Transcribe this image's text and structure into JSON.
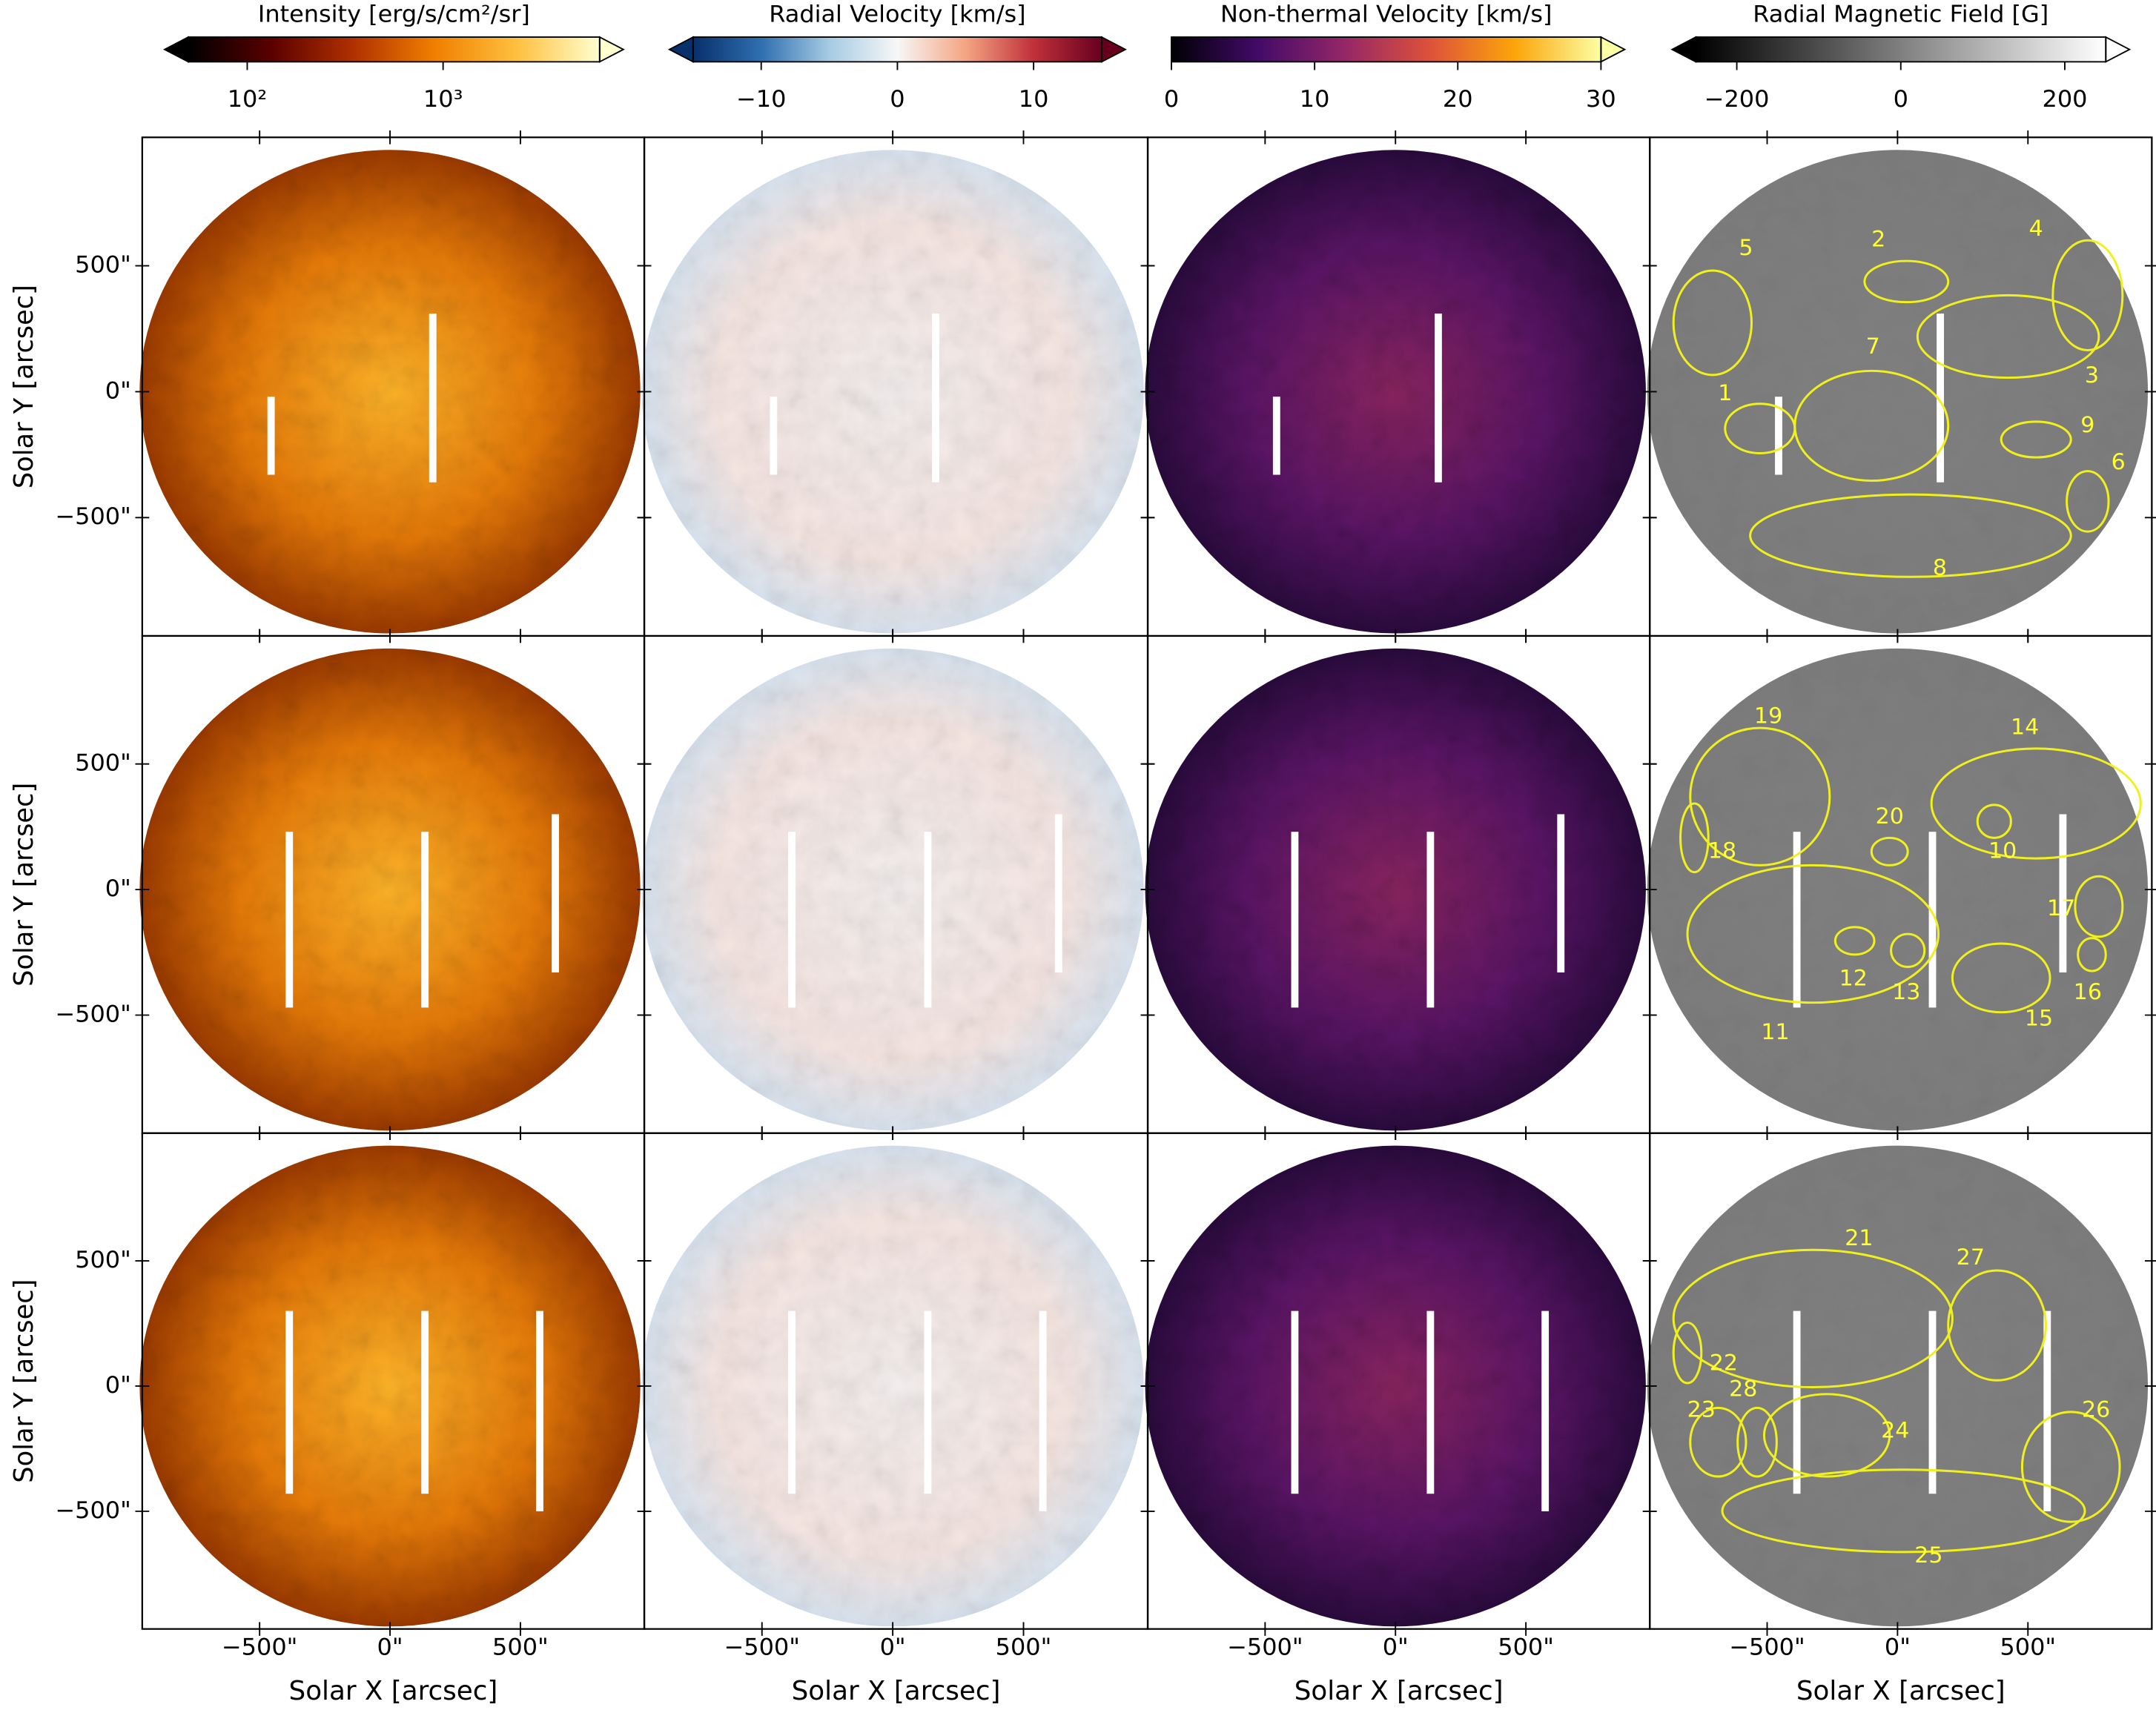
{
  "chart_data": {
    "type": "image-grid",
    "xlabel": "Solar X [arcsec]",
    "ylabel": "Solar Y [arcsec]",
    "xlim": [
      -950,
      975
    ],
    "ylim": [
      -970,
      1010
    ],
    "xticks": [
      {
        "value": -500,
        "label": "−500\""
      },
      {
        "value": 0,
        "label": "0\""
      },
      {
        "value": 500,
        "label": "500\""
      }
    ],
    "yticks": [
      {
        "value": 500,
        "label": "500\""
      },
      {
        "value": 0,
        "label": "0\""
      },
      {
        "value": -500,
        "label": "−500\""
      }
    ],
    "colorbars": [
      {
        "label": "Intensity [erg/s/cm²/sr]",
        "log": true,
        "lim": [
          50,
          6300
        ],
        "extend": "both",
        "ticks": [
          {
            "value": 100,
            "label": "10²"
          },
          {
            "value": 1000,
            "label": "10³"
          }
        ],
        "colors": [
          "#000000",
          "#5a0000",
          "#b03000",
          "#f08000",
          "#ffc040",
          "#ffffd0"
        ]
      },
      {
        "label": "Radial Velocity [km/s]",
        "log": false,
        "lim": [
          -15,
          15
        ],
        "extend": "both",
        "ticks": [
          {
            "value": -10,
            "label": "−10"
          },
          0,
          10
        ],
        "colors": [
          "#08306b",
          "#2f6fb0",
          "#a6cbe3",
          "#f7f7f7",
          "#f4a582",
          "#c0303a",
          "#67001f"
        ]
      },
      {
        "label": "Non-thermal Velocity [km/s]",
        "log": false,
        "lim": [
          0,
          30
        ],
        "extend": "max",
        "ticks": [
          0,
          10,
          20,
          30
        ],
        "colors": [
          "#000004",
          "#420a68",
          "#932667",
          "#dd513a",
          "#fca50a",
          "#fcffa4"
        ]
      },
      {
        "label": "Radial Magnetic Field [G]",
        "log": false,
        "lim": [
          -250,
          250
        ],
        "extend": "both",
        "ticks": [
          {
            "value": -200,
            "label": "−200"
          },
          0,
          200
        ],
        "colors": [
          "#000000",
          "#ffffff"
        ]
      }
    ],
    "regions": [
      [
        "5",
        "2",
        "4",
        "3",
        "7",
        "1",
        "9",
        "6",
        "8"
      ],
      [
        "19",
        "14",
        "18",
        "20",
        "10",
        "11",
        "17",
        "12",
        "13",
        "15",
        "16"
      ],
      [
        "21",
        "27",
        "22",
        "23",
        "28",
        "24",
        "26",
        "25"
      ]
    ]
  }
}
